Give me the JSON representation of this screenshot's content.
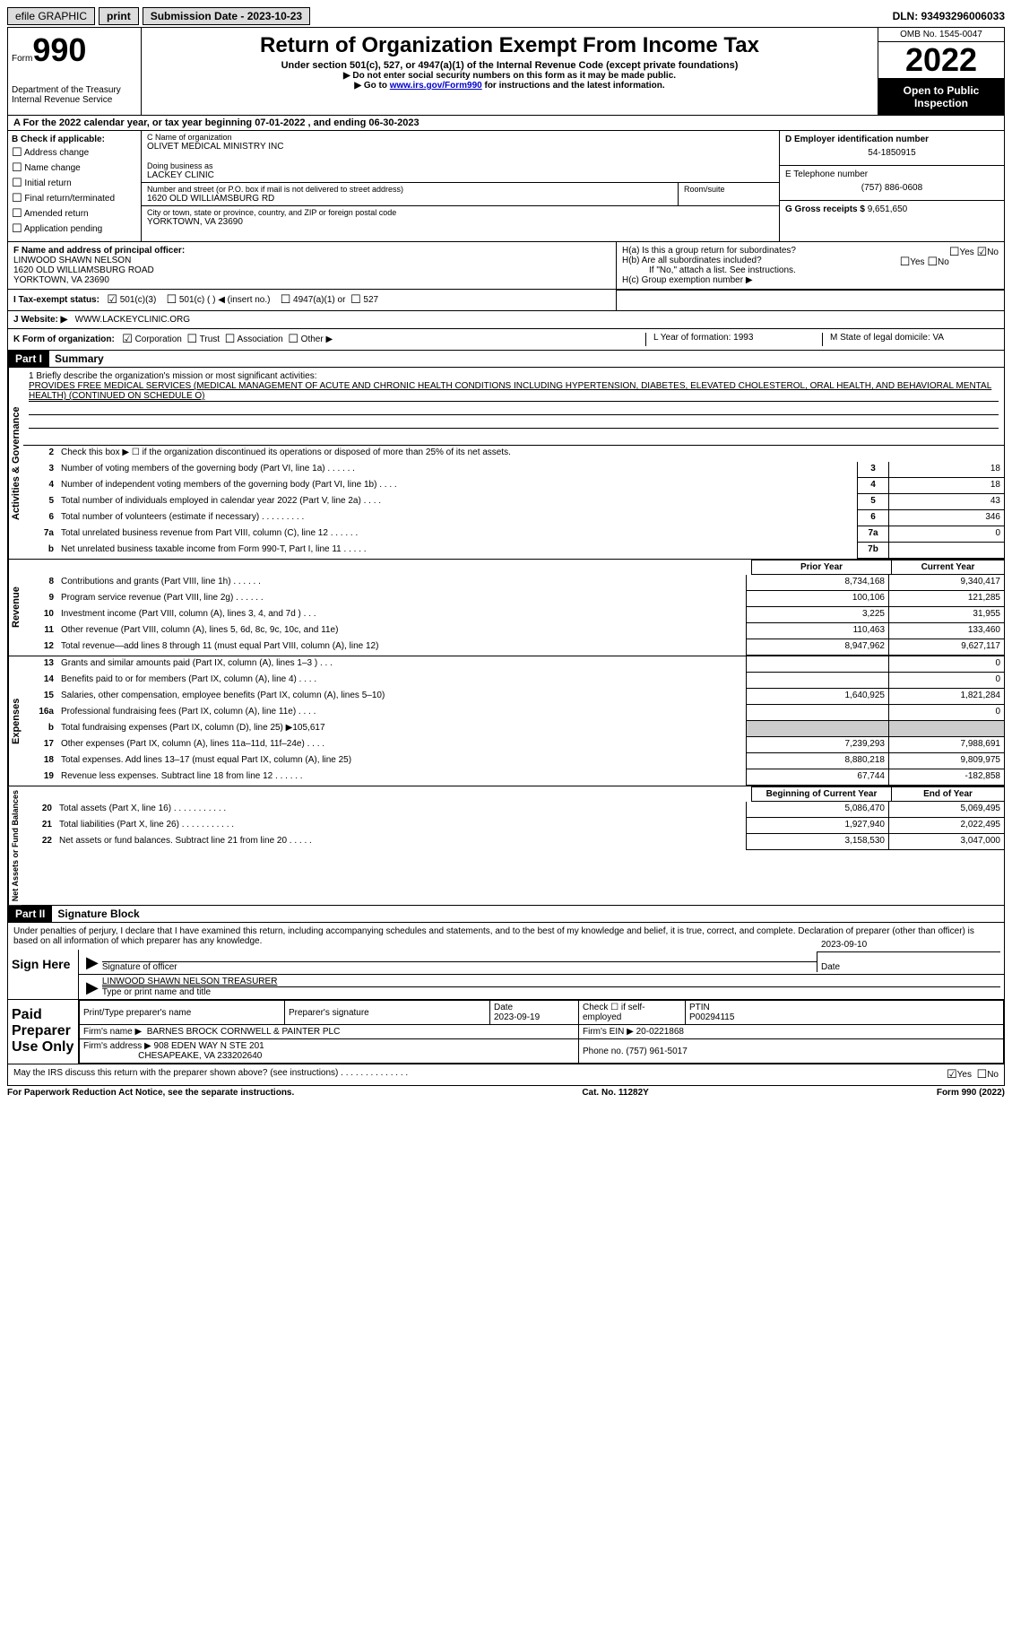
{
  "topbar": {
    "efile": "efile GRAPHIC",
    "print": "print",
    "subdate_label": "Submission Date - 2023-10-23",
    "dln": "DLN: 93493296006033"
  },
  "header": {
    "form_label": "Form",
    "form_num": "990",
    "dept": "Department of the Treasury Internal Revenue Service",
    "title": "Return of Organization Exempt From Income Tax",
    "sub1": "Under section 501(c), 527, or 4947(a)(1) of the Internal Revenue Code (except private foundations)",
    "sub2": "▶ Do not enter social security numbers on this form as it may be made public.",
    "sub3": "▶ Go to www.irs.gov/Form990 for instructions and the latest information.",
    "omb": "OMB No. 1545-0047",
    "year": "2022",
    "inspect": "Open to Public Inspection"
  },
  "rowA": "A For the 2022 calendar year, or tax year beginning 07-01-2022    , and ending 06-30-2023",
  "colB": {
    "hdr": "B Check if applicable:",
    "opts": [
      "Address change",
      "Name change",
      "Initial return",
      "Final return/terminated",
      "Amended return",
      "Application pending"
    ]
  },
  "colC": {
    "name_lab": "C Name of organization",
    "name": "OLIVET MEDICAL MINISTRY INC",
    "dba_lab": "Doing business as",
    "dba": "LACKEY CLINIC",
    "addr_lab": "Number and street (or P.O. box if mail is not delivered to street address)",
    "room_lab": "Room/suite",
    "addr": "1620 OLD WILLIAMSBURG RD",
    "city_lab": "City or town, state or province, country, and ZIP or foreign postal code",
    "city": "YORKTOWN, VA  23690"
  },
  "colD": {
    "ein_lab": "D Employer identification number",
    "ein": "54-1850915",
    "phone_lab": "E Telephone number",
    "phone": "(757) 886-0608",
    "gross_lab": "G Gross receipts $",
    "gross": "9,651,650"
  },
  "rowF": {
    "lab": "F Name and address of principal officer:",
    "name": "LINWOOD SHAWN NELSON",
    "addr1": "1620 OLD WILLIAMSBURG ROAD",
    "addr2": "YORKTOWN, VA  23690"
  },
  "rowH": {
    "ha": "H(a)  Is this a group return for subordinates?",
    "hb": "H(b)  Are all subordinates included?",
    "hb_note": "If \"No,\" attach a list. See instructions.",
    "hc": "H(c)  Group exemption number ▶"
  },
  "rowI": {
    "lab": "I   Tax-exempt status:",
    "o1": "501(c)(3)",
    "o2": "501(c) (   ) ◀ (insert no.)",
    "o3": "4947(a)(1) or",
    "o4": "527"
  },
  "rowJ": {
    "lab": "J   Website: ▶",
    "val": "WWW.LACKEYCLINIC.ORG"
  },
  "rowK": {
    "lab": "K Form of organization:",
    "corp": "Corporation",
    "trust": "Trust",
    "assoc": "Association",
    "other": "Other ▶",
    "L": "L Year of formation: 1993",
    "M": "M State of legal domicile: VA"
  },
  "part1": {
    "hdr": "Part I",
    "title": "Summary",
    "mission_lab": "1   Briefly describe the organization's mission or most significant activities:",
    "mission": "PROVIDES FREE MEDICAL SERVICES (MEDICAL MANAGEMENT OF ACUTE AND CHRONIC HEALTH CONDITIONS INCLUDING HYPERTENSION, DIABETES, ELEVATED CHOLESTEROL, ORAL HEALTH, AND BEHAVIORAL MENTAL HEALTH) (CONTINUED ON SCHEDULE O)",
    "line2": "Check this box ▶ ☐ if the organization discontinued its operations or disposed of more than 25% of its net assets.",
    "gov_label": "Activities & Governance",
    "rev_label": "Revenue",
    "exp_label": "Expenses",
    "net_label": "Net Assets or Fund Balances",
    "prior": "Prior Year",
    "current": "Current Year",
    "begin": "Beginning of Current Year",
    "end": "End of Year",
    "lines_gov": [
      {
        "n": "3",
        "d": "Number of voting members of the governing body (Part VI, line 1a)   .    .    .    .    .    .",
        "b": "3",
        "v": "18"
      },
      {
        "n": "4",
        "d": "Number of independent voting members of the governing body (Part VI, line 1b)  .    .    .    .",
        "b": "4",
        "v": "18"
      },
      {
        "n": "5",
        "d": "Total number of individuals employed in calendar year 2022 (Part V, line 2a)   .    .    .    .",
        "b": "5",
        "v": "43"
      },
      {
        "n": "6",
        "d": "Total number of volunteers (estimate if necessary)    .    .    .    .    .    .    .    .    .",
        "b": "6",
        "v": "346"
      },
      {
        "n": "7a",
        "d": "Total unrelated business revenue from Part VIII, column (C), line 12   .    .    .    .    .    .",
        "b": "7a",
        "v": "0"
      },
      {
        "n": "b",
        "d": "Net unrelated business taxable income from Form 990-T, Part I, line 11    .    .    .    .    .",
        "b": "7b",
        "v": ""
      }
    ],
    "lines_rev": [
      {
        "n": "8",
        "d": "Contributions and grants (Part VIII, line 1h)    .    .    .    .    .    .",
        "p": "8,734,168",
        "c": "9,340,417"
      },
      {
        "n": "9",
        "d": "Program service revenue (Part VIII, line 2g)   .    .    .    .    .    .",
        "p": "100,106",
        "c": "121,285"
      },
      {
        "n": "10",
        "d": "Investment income (Part VIII, column (A), lines 3, 4, and 7d )    .    .    .",
        "p": "3,225",
        "c": "31,955"
      },
      {
        "n": "11",
        "d": "Other revenue (Part VIII, column (A), lines 5, 6d, 8c, 9c, 10c, and 11e)",
        "p": "110,463",
        "c": "133,460"
      },
      {
        "n": "12",
        "d": "Total revenue—add lines 8 through 11 (must equal Part VIII, column (A), line 12)",
        "p": "8,947,962",
        "c": "9,627,117"
      }
    ],
    "lines_exp": [
      {
        "n": "13",
        "d": "Grants and similar amounts paid (Part IX, column (A), lines 1–3 )    .    .    .",
        "p": "",
        "c": "0"
      },
      {
        "n": "14",
        "d": "Benefits paid to or for members (Part IX, column (A), line 4)   .    .    .    .",
        "p": "",
        "c": "0"
      },
      {
        "n": "15",
        "d": "Salaries, other compensation, employee benefits (Part IX, column (A), lines 5–10)",
        "p": "1,640,925",
        "c": "1,821,284"
      },
      {
        "n": "16a",
        "d": "Professional fundraising fees (Part IX, column (A), line 11e)   .    .    .    .",
        "p": "",
        "c": "0"
      },
      {
        "n": "b",
        "d": "Total fundraising expenses (Part IX, column (D), line 25) ▶105,617",
        "p": "shade",
        "c": "shade"
      },
      {
        "n": "17",
        "d": "Other expenses (Part IX, column (A), lines 11a–11d, 11f–24e)    .    .    .    .",
        "p": "7,239,293",
        "c": "7,988,691"
      },
      {
        "n": "18",
        "d": "Total expenses. Add lines 13–17 (must equal Part IX, column (A), line 25)",
        "p": "8,880,218",
        "c": "9,809,975"
      },
      {
        "n": "19",
        "d": "Revenue less expenses. Subtract line 18 from line 12   .    .    .    .    .    .",
        "p": "67,744",
        "c": "-182,858"
      }
    ],
    "lines_net": [
      {
        "n": "20",
        "d": "Total assets (Part X, line 16)   .    .    .    .    .    .    .    .    .    .    .",
        "p": "5,086,470",
        "c": "5,069,495"
      },
      {
        "n": "21",
        "d": "Total liabilities (Part X, line 26)  .    .    .    .    .    .    .    .    .    .    .",
        "p": "1,927,940",
        "c": "2,022,495"
      },
      {
        "n": "22",
        "d": "Net assets or fund balances. Subtract line 21 from line 20    .    .    .    .    .",
        "p": "3,158,530",
        "c": "3,047,000"
      }
    ]
  },
  "part2": {
    "hdr": "Part II",
    "title": "Signature Block",
    "penalties": "Under penalties of perjury, I declare that I have examined this return, including accompanying schedules and statements, and to the best of my knowledge and belief, it is true, correct, and complete. Declaration of preparer (other than officer) is based on all information of which preparer has any knowledge.",
    "sign_here": "Sign Here",
    "sig_officer": "Signature of officer",
    "sig_date": "2023-09-10",
    "date_lab": "Date",
    "officer_name": "LINWOOD SHAWN NELSON  TREASURER",
    "name_lab": "Type or print name and title",
    "paid": "Paid Preparer Use Only",
    "prep_name_lab": "Print/Type preparer's name",
    "prep_sig_lab": "Preparer's signature",
    "prep_date_lab": "Date",
    "prep_date": "2023-09-19",
    "self_emp": "Check ☐ if self-employed",
    "ptin_lab": "PTIN",
    "ptin": "P00294115",
    "firm_name_lab": "Firm's name    ▶",
    "firm_name": "BARNES BROCK CORNWELL & PAINTER PLC",
    "firm_ein_lab": "Firm's EIN ▶",
    "firm_ein": "20-0221868",
    "firm_addr_lab": "Firm's address ▶",
    "firm_addr1": "908 EDEN WAY N STE 201",
    "firm_addr2": "CHESAPEAKE, VA  233202640",
    "firm_phone_lab": "Phone no.",
    "firm_phone": "(757) 961-5017",
    "discuss": "May the IRS discuss this return with the preparer shown above? (see instructions)   .    .    .    .    .    .    .    .    .    .    .    .    .    ."
  },
  "footer": {
    "left": "For Paperwork Reduction Act Notice, see the separate instructions.",
    "mid": "Cat. No. 11282Y",
    "right": "Form 990 (2022)"
  },
  "glyphs": {
    "checked": "☑",
    "unchecked": "☐",
    "yes": "Yes",
    "no": "No"
  }
}
